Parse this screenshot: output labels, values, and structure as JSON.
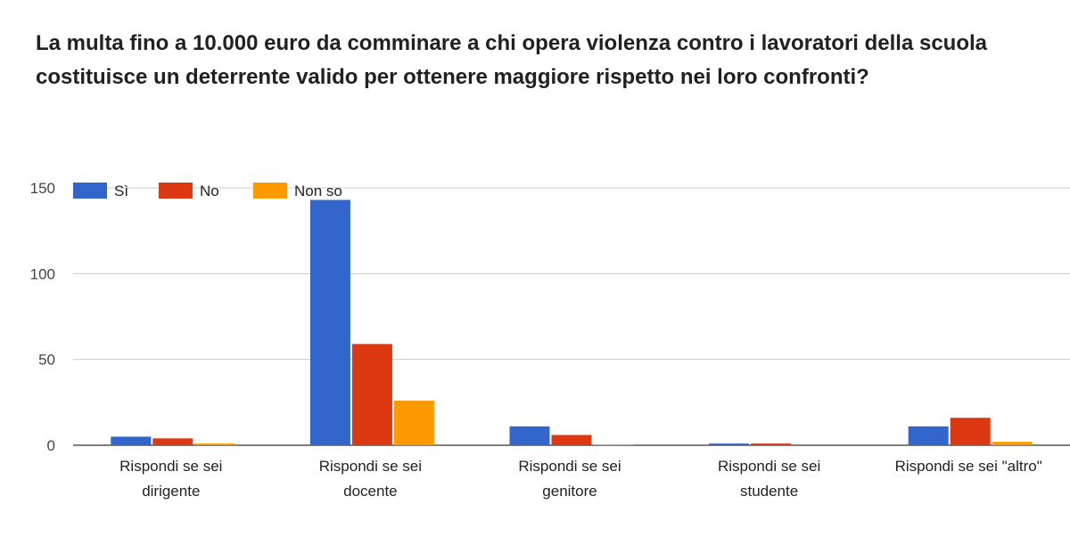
{
  "chart_data": {
    "type": "bar",
    "title_lines": [
      "La multa fino a 10.000 euro da comminare a chi opera violenza contro i lavoratori della scuola",
      "costituisce un deterrente valido per ottenere maggiore rispetto nei loro confronti?"
    ],
    "categories": [
      [
        "Rispondi se sei",
        "dirigente"
      ],
      [
        "Rispondi se sei",
        "docente"
      ],
      [
        "Rispondi se sei",
        "genitore"
      ],
      [
        "Rispondi se sei",
        "studente"
      ],
      [
        "Rispondi se sei \"altro\""
      ]
    ],
    "series": [
      {
        "name": "Sì",
        "color": "#3366cc",
        "values": [
          5,
          143,
          11,
          1,
          11
        ]
      },
      {
        "name": "No",
        "color": "#dc3912",
        "values": [
          4,
          59,
          6,
          1,
          16
        ]
      },
      {
        "name": "Non so",
        "color": "#ff9900",
        "values": [
          1,
          26,
          0.5,
          0,
          2
        ]
      }
    ],
    "y_ticks": [
      "0",
      "50",
      "100",
      "150"
    ],
    "ylim": [
      0,
      150
    ],
    "grid": true,
    "legend_position": "top-left"
  }
}
